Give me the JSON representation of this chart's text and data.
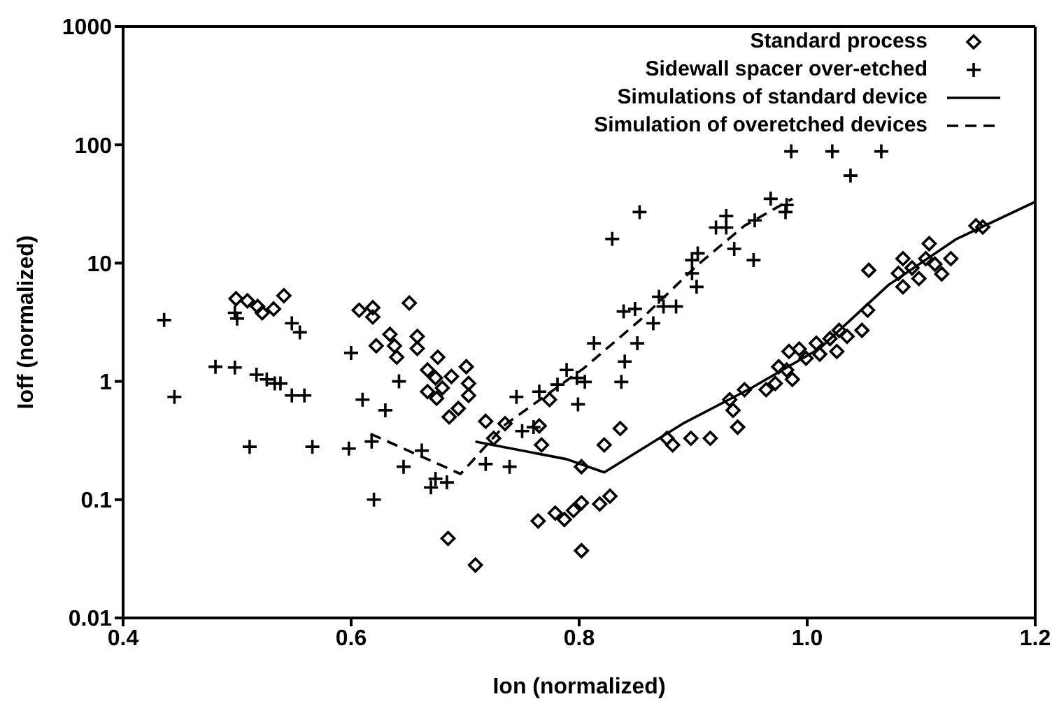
{
  "chart_data": {
    "type": "scatter",
    "xlabel": "Ion (normalized)",
    "ylabel": "Ioff (normalized)",
    "log": "y",
    "xlim": [
      0.4,
      1.2
    ],
    "ylim": [
      0.01,
      1000
    ],
    "xticks": [
      0.4,
      0.6,
      0.8,
      {
        "value": 1,
        "label": "1.0"
      },
      1.2
    ],
    "yticks": [
      0.01,
      0.1,
      1,
      10,
      100,
      1000
    ],
    "legend": "top right",
    "series": [
      {
        "name": "Standard process",
        "type": "scatter",
        "marker": "diamond",
        "color": "#000000",
        "x": [
          0.499,
          0.509,
          0.518,
          0.522,
          0.532,
          0.541,
          0.607,
          0.619,
          0.619,
          0.622,
          0.634,
          0.638,
          0.64,
          0.651,
          0.658,
          0.658,
          0.676,
          0.667,
          0.674,
          0.667,
          0.675,
          0.68,
          0.688,
          0.701,
          0.703,
          0.703,
          0.694,
          0.686,
          0.718,
          0.725,
          0.735,
          0.765,
          0.767,
          0.774,
          0.802,
          0.764,
          0.779,
          0.787,
          0.795,
          0.802,
          0.818,
          0.827,
          0.802,
          0.685,
          0.709,
          0.822,
          0.836,
          0.877,
          0.882,
          0.898,
          0.915,
          0.932,
          0.935,
          0.939,
          0.945,
          0.964,
          0.972,
          0.975,
          0.984,
          0.982,
          0.987,
          0.993,
          0.999,
          1.008,
          1.011,
          1.02,
          1.026,
          1.028,
          1.035,
          1.048,
          1.053,
          1.054,
          1.08,
          1.084,
          1.084,
          1.092,
          1.098,
          1.104,
          1.107,
          1.112,
          1.118,
          1.126,
          1.148,
          1.154
        ],
        "values": [
          5.0,
          4.8,
          4.3,
          3.8,
          4.1,
          5.3,
          4.0,
          4.2,
          3.5,
          2.0,
          2.5,
          2.0,
          1.6,
          4.6,
          2.4,
          1.9,
          1.6,
          1.25,
          1.07,
          0.82,
          0.72,
          0.88,
          1.1,
          1.33,
          0.96,
          0.76,
          0.59,
          0.5,
          0.46,
          0.33,
          0.44,
          0.42,
          0.29,
          0.7,
          0.19,
          0.066,
          0.077,
          0.068,
          0.081,
          0.094,
          0.092,
          0.107,
          0.037,
          0.047,
          0.028,
          0.29,
          0.4,
          0.33,
          0.29,
          0.33,
          0.33,
          0.7,
          0.57,
          0.41,
          0.85,
          0.85,
          0.96,
          1.33,
          1.79,
          1.25,
          1.04,
          1.88,
          1.57,
          2.1,
          1.7,
          2.3,
          1.79,
          2.7,
          2.4,
          2.7,
          4.0,
          8.7,
          8.2,
          10.9,
          6.3,
          9.1,
          7.4,
          10.9,
          14.6,
          9.8,
          8.1,
          10.9,
          20.7,
          20.2
        ]
      },
      {
        "name": "Sidewall spacer over-etched",
        "type": "scatter",
        "marker": "cross",
        "color": "#000000",
        "x": [
          0.436,
          0.445,
          0.481,
          0.498,
          0.498,
          0.5,
          0.511,
          0.517,
          0.526,
          0.533,
          0.538,
          0.548,
          0.555,
          0.548,
          0.559,
          0.566,
          0.598,
          0.6,
          0.61,
          0.618,
          0.62,
          0.63,
          0.642,
          0.646,
          0.662,
          0.67,
          0.674,
          0.684,
          0.718,
          0.739,
          0.745,
          0.75,
          0.76,
          0.765,
          0.781,
          0.789,
          0.798,
          0.799,
          0.805,
          0.813,
          0.829,
          0.837,
          0.84,
          0.839,
          0.849,
          0.853,
          0.851,
          0.865,
          0.87,
          0.874,
          0.885,
          0.899,
          0.899,
          0.903,
          0.904,
          0.92,
          0.929,
          0.929,
          0.936,
          0.954,
          0.953,
          0.968,
          0.982,
          0.981,
          0.986,
          1.022,
          1.038,
          1.065
        ],
        "values": [
          3.3,
          0.74,
          1.33,
          1.31,
          3.8,
          3.4,
          0.28,
          1.14,
          1.04,
          0.96,
          0.96,
          3.1,
          2.6,
          0.76,
          0.76,
          0.28,
          0.27,
          1.74,
          0.7,
          0.31,
          0.1,
          0.57,
          1.0,
          0.19,
          0.26,
          0.127,
          0.15,
          0.14,
          0.2,
          0.19,
          0.74,
          0.38,
          0.41,
          0.82,
          0.94,
          1.25,
          1.07,
          0.64,
          0.99,
          2.1,
          16,
          0.99,
          1.47,
          3.9,
          4.1,
          27,
          2.1,
          3.1,
          5.2,
          4.3,
          4.3,
          10.6,
          8.2,
          6.3,
          12.1,
          20,
          25,
          20,
          13.2,
          23,
          10.6,
          35,
          31,
          27,
          88,
          88,
          55,
          88
        ]
      },
      {
        "name": "Simulations of standard device",
        "type": "line",
        "line_style": "solid",
        "color": "#000000",
        "x": [
          0.709,
          0.789,
          0.822,
          0.891,
          0.951,
          1.011,
          1.071,
          1.131,
          1.2
        ],
        "values": [
          0.31,
          0.22,
          0.17,
          0.44,
          0.88,
          1.9,
          6.5,
          16,
          33
        ]
      },
      {
        "name": "Simulation of overetched devices",
        "type": "line",
        "line_style": "dashed",
        "color": "#000000",
        "x": [
          0.617,
          0.696,
          0.735,
          0.804,
          0.855,
          0.903,
          0.945,
          0.987
        ],
        "values": [
          0.36,
          0.165,
          0.43,
          1.29,
          3.4,
          9.5,
          20.7,
          35
        ]
      }
    ]
  }
}
